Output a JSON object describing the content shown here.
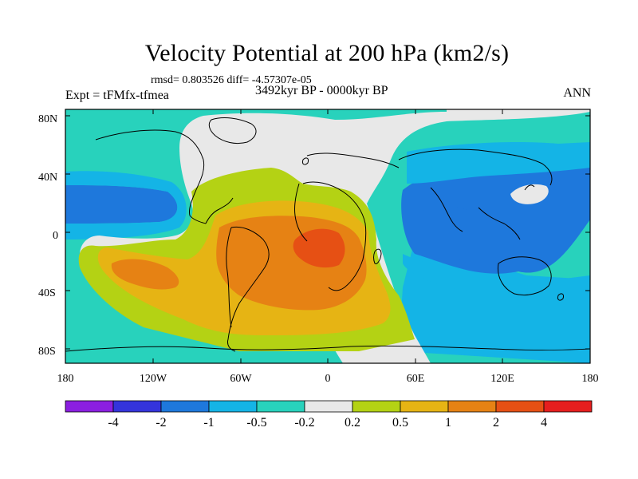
{
  "title": "Velocity Potential at 200 hPa (km2/s)",
  "stats": "rmsd= 0.803526 diff= -4.57307e-05",
  "experiment": "Expt = tFMfx-tfmea",
  "period": "3492kyr BP - 0000kyr BP",
  "season": "ANN",
  "map": {
    "projection": "cylindrical equidistant",
    "lat_range": [
      -90,
      90
    ],
    "lon_range": [
      -180,
      180
    ],
    "lat_ticks": [
      "80N",
      "40N",
      "0",
      "40S",
      "80S"
    ],
    "lon_ticks": [
      "180",
      "120W",
      "60W",
      "0",
      "60E",
      "120E",
      "180"
    ]
  },
  "colorbar": {
    "labels": [
      "-4",
      "-2",
      "-1",
      "-0.5",
      "-0.2",
      "0.2",
      "0.5",
      "1",
      "2",
      "4"
    ],
    "colors": [
      "#8b1fe0",
      "#3434dc",
      "#1e78dc",
      "#14b4e6",
      "#28d2bc",
      "#e8e8e8",
      "#b4d214",
      "#e6b414",
      "#e68214",
      "#e65014",
      "#e61e1e"
    ]
  },
  "field_colors": {
    "cyan_teal": "#28d2bc",
    "light_blue": "#14b4e6",
    "mid_blue": "#1e78dc",
    "white": "#e8e8e8",
    "yellow_green": "#b4d214",
    "gold": "#e6b414",
    "orange": "#e68214",
    "red_orange": "#e65014"
  }
}
